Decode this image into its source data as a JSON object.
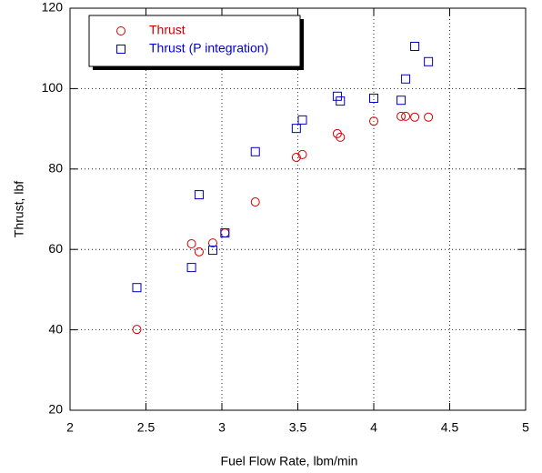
{
  "chart_data": {
    "type": "scatter",
    "xlabel": "Fuel Flow Rate, lbm/min",
    "ylabel": "Thrust, lbf",
    "xlim": [
      2,
      5
    ],
    "xticks": [
      2,
      2.5,
      3,
      3.5,
      4,
      4.5,
      5
    ],
    "ylim": [
      20,
      120
    ],
    "yticks": [
      20,
      40,
      60,
      80,
      100,
      120
    ],
    "grid": true,
    "legend": "upper-left",
    "series": [
      {
        "name": "Thrust",
        "color": "#cc0000",
        "marker": "circle",
        "x": [
          2.44,
          2.8,
          2.85,
          2.94,
          3.02,
          3.22,
          3.49,
          3.53,
          3.76,
          3.78,
          4.0,
          4.18,
          4.21,
          4.27,
          4.36
        ],
        "values": [
          40.1,
          61.4,
          59.4,
          61.6,
          64.1,
          71.8,
          82.9,
          83.6,
          88.8,
          87.9,
          91.9,
          93.1,
          93.1,
          92.9,
          92.9
        ]
      },
      {
        "name": "Thrust (P integration)",
        "color": "#0000cc",
        "marker": "square",
        "x": [
          2.44,
          2.8,
          2.85,
          2.94,
          3.02,
          3.22,
          3.49,
          3.53,
          3.76,
          3.78,
          4.0,
          4.18,
          4.21,
          4.27,
          4.36
        ],
        "values": [
          50.5,
          55.5,
          73.6,
          59.8,
          64.1,
          84.3,
          90.1,
          92.2,
          98.1,
          96.9,
          97.6,
          97.1,
          102.4,
          110.5,
          106.7
        ]
      }
    ]
  }
}
